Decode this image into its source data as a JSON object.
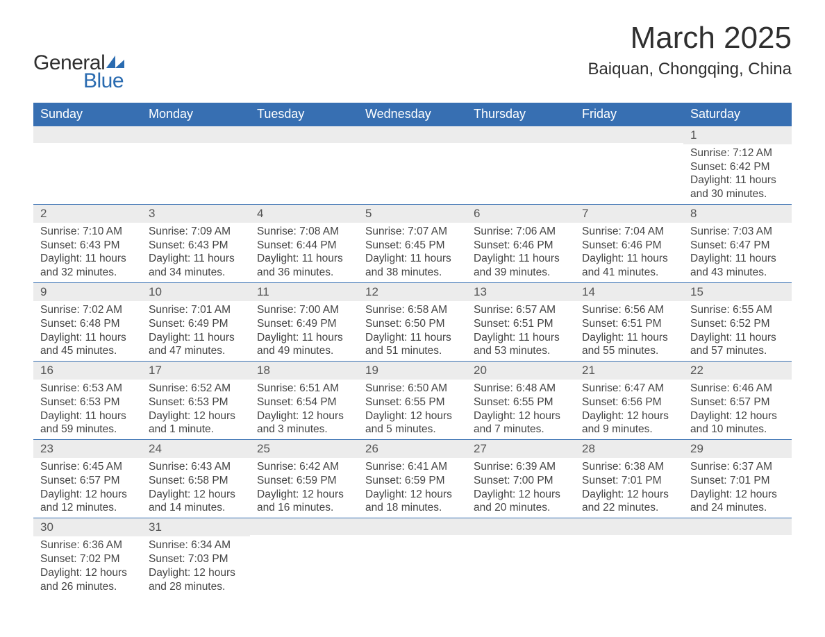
{
  "logo": {
    "text1": "General",
    "text2": "Blue",
    "text1_color": "#2f2f2f",
    "text2_color": "#2a6bb0",
    "shape_color": "#2a6bb0"
  },
  "title": {
    "month": "March 2025",
    "location": "Baiquan, Chongqing, China",
    "month_fontsize": 44,
    "location_fontsize": 24,
    "color": "#2f2f2f"
  },
  "calendar": {
    "header_bg": "#376fb2",
    "header_fg": "#ffffff",
    "daynum_bg": "#ececec",
    "border_color": "#376fb2",
    "text_color": "#444444",
    "weekdays": [
      "Sunday",
      "Monday",
      "Tuesday",
      "Wednesday",
      "Thursday",
      "Friday",
      "Saturday"
    ],
    "weeks": [
      [
        null,
        null,
        null,
        null,
        null,
        null,
        {
          "n": "1",
          "sr": "Sunrise: 7:12 AM",
          "ss": "Sunset: 6:42 PM",
          "d1": "Daylight: 11 hours",
          "d2": "and 30 minutes."
        }
      ],
      [
        {
          "n": "2",
          "sr": "Sunrise: 7:10 AM",
          "ss": "Sunset: 6:43 PM",
          "d1": "Daylight: 11 hours",
          "d2": "and 32 minutes."
        },
        {
          "n": "3",
          "sr": "Sunrise: 7:09 AM",
          "ss": "Sunset: 6:43 PM",
          "d1": "Daylight: 11 hours",
          "d2": "and 34 minutes."
        },
        {
          "n": "4",
          "sr": "Sunrise: 7:08 AM",
          "ss": "Sunset: 6:44 PM",
          "d1": "Daylight: 11 hours",
          "d2": "and 36 minutes."
        },
        {
          "n": "5",
          "sr": "Sunrise: 7:07 AM",
          "ss": "Sunset: 6:45 PM",
          "d1": "Daylight: 11 hours",
          "d2": "and 38 minutes."
        },
        {
          "n": "6",
          "sr": "Sunrise: 7:06 AM",
          "ss": "Sunset: 6:46 PM",
          "d1": "Daylight: 11 hours",
          "d2": "and 39 minutes."
        },
        {
          "n": "7",
          "sr": "Sunrise: 7:04 AM",
          "ss": "Sunset: 6:46 PM",
          "d1": "Daylight: 11 hours",
          "d2": "and 41 minutes."
        },
        {
          "n": "8",
          "sr": "Sunrise: 7:03 AM",
          "ss": "Sunset: 6:47 PM",
          "d1": "Daylight: 11 hours",
          "d2": "and 43 minutes."
        }
      ],
      [
        {
          "n": "9",
          "sr": "Sunrise: 7:02 AM",
          "ss": "Sunset: 6:48 PM",
          "d1": "Daylight: 11 hours",
          "d2": "and 45 minutes."
        },
        {
          "n": "10",
          "sr": "Sunrise: 7:01 AM",
          "ss": "Sunset: 6:49 PM",
          "d1": "Daylight: 11 hours",
          "d2": "and 47 minutes."
        },
        {
          "n": "11",
          "sr": "Sunrise: 7:00 AM",
          "ss": "Sunset: 6:49 PM",
          "d1": "Daylight: 11 hours",
          "d2": "and 49 minutes."
        },
        {
          "n": "12",
          "sr": "Sunrise: 6:58 AM",
          "ss": "Sunset: 6:50 PM",
          "d1": "Daylight: 11 hours",
          "d2": "and 51 minutes."
        },
        {
          "n": "13",
          "sr": "Sunrise: 6:57 AM",
          "ss": "Sunset: 6:51 PM",
          "d1": "Daylight: 11 hours",
          "d2": "and 53 minutes."
        },
        {
          "n": "14",
          "sr": "Sunrise: 6:56 AM",
          "ss": "Sunset: 6:51 PM",
          "d1": "Daylight: 11 hours",
          "d2": "and 55 minutes."
        },
        {
          "n": "15",
          "sr": "Sunrise: 6:55 AM",
          "ss": "Sunset: 6:52 PM",
          "d1": "Daylight: 11 hours",
          "d2": "and 57 minutes."
        }
      ],
      [
        {
          "n": "16",
          "sr": "Sunrise: 6:53 AM",
          "ss": "Sunset: 6:53 PM",
          "d1": "Daylight: 11 hours",
          "d2": "and 59 minutes."
        },
        {
          "n": "17",
          "sr": "Sunrise: 6:52 AM",
          "ss": "Sunset: 6:53 PM",
          "d1": "Daylight: 12 hours",
          "d2": "and 1 minute."
        },
        {
          "n": "18",
          "sr": "Sunrise: 6:51 AM",
          "ss": "Sunset: 6:54 PM",
          "d1": "Daylight: 12 hours",
          "d2": "and 3 minutes."
        },
        {
          "n": "19",
          "sr": "Sunrise: 6:50 AM",
          "ss": "Sunset: 6:55 PM",
          "d1": "Daylight: 12 hours",
          "d2": "and 5 minutes."
        },
        {
          "n": "20",
          "sr": "Sunrise: 6:48 AM",
          "ss": "Sunset: 6:55 PM",
          "d1": "Daylight: 12 hours",
          "d2": "and 7 minutes."
        },
        {
          "n": "21",
          "sr": "Sunrise: 6:47 AM",
          "ss": "Sunset: 6:56 PM",
          "d1": "Daylight: 12 hours",
          "d2": "and 9 minutes."
        },
        {
          "n": "22",
          "sr": "Sunrise: 6:46 AM",
          "ss": "Sunset: 6:57 PM",
          "d1": "Daylight: 12 hours",
          "d2": "and 10 minutes."
        }
      ],
      [
        {
          "n": "23",
          "sr": "Sunrise: 6:45 AM",
          "ss": "Sunset: 6:57 PM",
          "d1": "Daylight: 12 hours",
          "d2": "and 12 minutes."
        },
        {
          "n": "24",
          "sr": "Sunrise: 6:43 AM",
          "ss": "Sunset: 6:58 PM",
          "d1": "Daylight: 12 hours",
          "d2": "and 14 minutes."
        },
        {
          "n": "25",
          "sr": "Sunrise: 6:42 AM",
          "ss": "Sunset: 6:59 PM",
          "d1": "Daylight: 12 hours",
          "d2": "and 16 minutes."
        },
        {
          "n": "26",
          "sr": "Sunrise: 6:41 AM",
          "ss": "Sunset: 6:59 PM",
          "d1": "Daylight: 12 hours",
          "d2": "and 18 minutes."
        },
        {
          "n": "27",
          "sr": "Sunrise: 6:39 AM",
          "ss": "Sunset: 7:00 PM",
          "d1": "Daylight: 12 hours",
          "d2": "and 20 minutes."
        },
        {
          "n": "28",
          "sr": "Sunrise: 6:38 AM",
          "ss": "Sunset: 7:01 PM",
          "d1": "Daylight: 12 hours",
          "d2": "and 22 minutes."
        },
        {
          "n": "29",
          "sr": "Sunrise: 6:37 AM",
          "ss": "Sunset: 7:01 PM",
          "d1": "Daylight: 12 hours",
          "d2": "and 24 minutes."
        }
      ],
      [
        {
          "n": "30",
          "sr": "Sunrise: 6:36 AM",
          "ss": "Sunset: 7:02 PM",
          "d1": "Daylight: 12 hours",
          "d2": "and 26 minutes."
        },
        {
          "n": "31",
          "sr": "Sunrise: 6:34 AM",
          "ss": "Sunset: 7:03 PM",
          "d1": "Daylight: 12 hours",
          "d2": "and 28 minutes."
        },
        null,
        null,
        null,
        null,
        null
      ]
    ]
  }
}
